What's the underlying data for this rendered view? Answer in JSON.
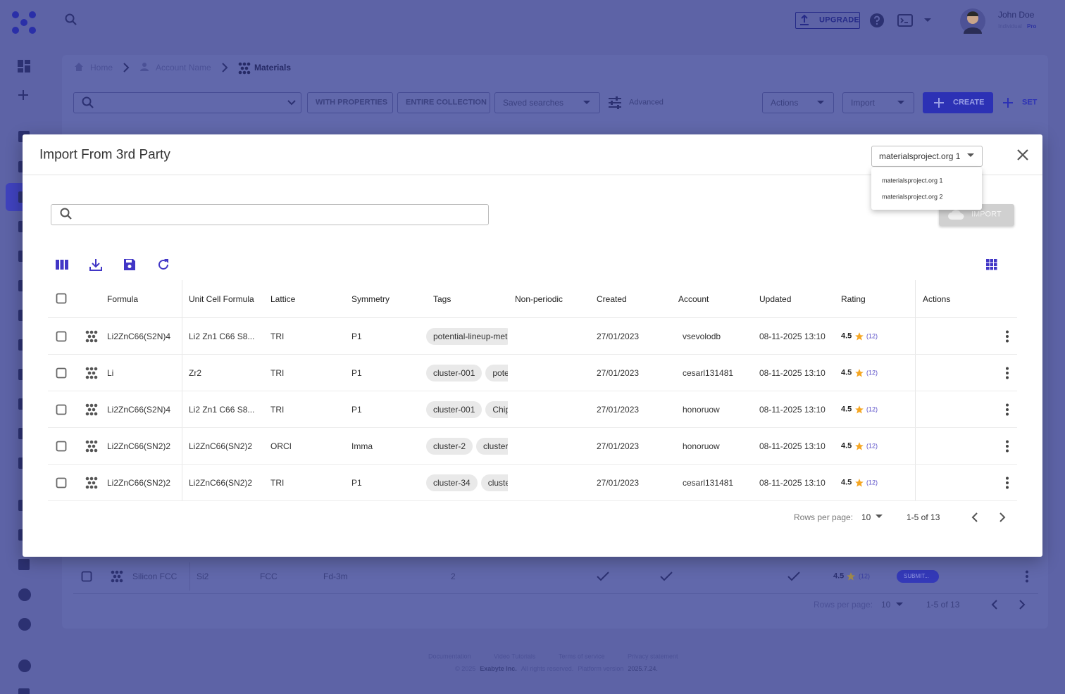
{
  "header": {
    "user_name": "John Doe",
    "plan": "Individual",
    "plan_tier": "Pro",
    "upgrade": "UPGRADE"
  },
  "breadcrumbs": [
    "Home",
    "Account Name",
    "Materials"
  ],
  "toolbar": {
    "with_properties": "WITH PROPERTIES",
    "entire_collection": "ENTIRE COLLECTION",
    "saved_searches": "Saved searches",
    "advanced": "Advanced",
    "actions": "Actions",
    "import": "Import",
    "create": "CREATE",
    "set": "SET"
  },
  "background_row": {
    "formula": "Silicon FCC",
    "unit_cell_formula": "Si2",
    "lattice": "FCC",
    "symmetry": "Fd-3m",
    "count": "2",
    "rating": "4.5",
    "rating_count": "(12)",
    "status": "SUBMIT..."
  },
  "background_pagination": {
    "rows_per_page_label": "Rows per page:",
    "rows_per_page": "10",
    "range": "1-5 of 13"
  },
  "footer": {
    "links": [
      "Documentation",
      "Video Tutorials",
      "Terms of service",
      "Privacy statement"
    ],
    "copyright": "© 2025",
    "company": "Exabyte Inc.",
    "rights": "All rights reserved.",
    "version_label": "Platform version",
    "version": "2025.7.24."
  },
  "modal": {
    "title": "Import From 3rd Party",
    "source_selected": "materialsproject.org 1",
    "source_options": [
      "materialsproject.org 1",
      "materialsproject.org 2"
    ],
    "import_button": "IMPORT",
    "table": {
      "columns": [
        "Formula",
        "Unit Cell Formula",
        "Lattice",
        "Symmetry",
        "Tags",
        "Non-periodic",
        "Created",
        "Account",
        "Updated",
        "Rating",
        "Actions"
      ],
      "rows": [
        {
          "formula": "Li2ZnC66(S2N)4",
          "unit_cell_formula": "Li2 Zn1 C66 S8...",
          "lattice": "TRI",
          "symmetry": "P1",
          "tags": [
            "potential-lineup-met"
          ],
          "created": "27/01/2023",
          "account": "vsevolodb",
          "updated": "08-11-2025 13:10",
          "rating": "4.5",
          "rating_count": "(12)"
        },
        {
          "formula": "Li",
          "unit_cell_formula": "Zr2",
          "lattice": "TRI",
          "symmetry": "P1",
          "tags": [
            "cluster-001",
            "pote"
          ],
          "created": "27/01/2023",
          "account": "cesarl131481",
          "updated": "08-11-2025 13:10",
          "rating": "4.5",
          "rating_count": "(12)"
        },
        {
          "formula": "Li2ZnC66(S2N)4",
          "unit_cell_formula": "Li2 Zn1 C66 S8...",
          "lattice": "TRI",
          "symmetry": "P1",
          "tags": [
            "cluster-001",
            "Chip"
          ],
          "created": "27/01/2023",
          "account": "honoruow",
          "updated": "08-11-2025 13:10",
          "rating": "4.5",
          "rating_count": "(12)"
        },
        {
          "formula": "Li2ZnC66(SN2)2",
          "unit_cell_formula": "Li2ZnC66(SN2)2",
          "lattice": "ORCI",
          "symmetry": "Imma",
          "tags": [
            "cluster-2",
            "cluster"
          ],
          "created": "27/01/2023",
          "account": "honoruow",
          "updated": "08-11-2025 13:10",
          "rating": "4.5",
          "rating_count": "(12)"
        },
        {
          "formula": "Li2ZnC66(SN2)2",
          "unit_cell_formula": "Li2ZnC66(SN2)2",
          "lattice": "TRI",
          "symmetry": "P1",
          "tags": [
            "cluster-34",
            "cluste"
          ],
          "created": "27/01/2023",
          "account": "cesarl131481",
          "updated": "08-11-2025 13:10",
          "rating": "4.5",
          "rating_count": "(12)"
        }
      ]
    },
    "pagination": {
      "rows_per_page_label": "Rows per page:",
      "rows_per_page": "10",
      "range": "1-5 of 13"
    }
  }
}
